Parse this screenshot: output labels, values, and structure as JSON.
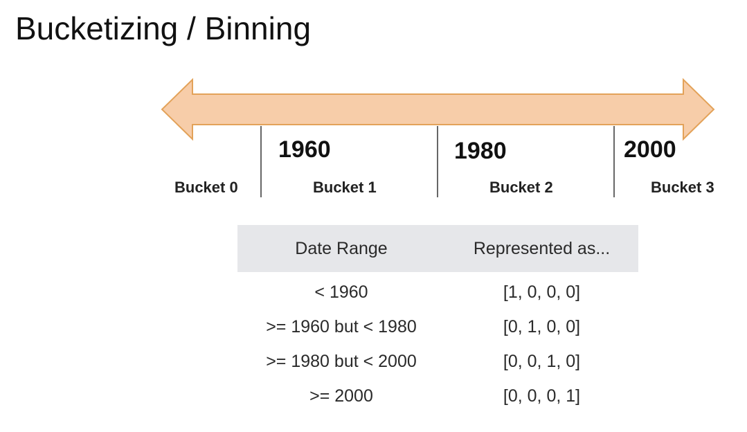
{
  "title": "Bucketizing / Binning",
  "timeline": {
    "arrow_fill": "#f7cda9",
    "arrow_stroke": "#e3a259",
    "years": [
      "1960",
      "1980",
      "2000"
    ],
    "buckets": [
      "Bucket 0",
      "Bucket 1",
      "Bucket 2",
      "Bucket 3"
    ]
  },
  "table": {
    "header_bg": "#e6e7ea",
    "headers": [
      "Date Range",
      "Represented as..."
    ],
    "rows": [
      {
        "range": "< 1960",
        "encoding": "[1, 0, 0, 0]"
      },
      {
        "range": ">= 1960 but < 1980",
        "encoding": "[0, 1, 0, 0]"
      },
      {
        "range": ">= 1980 but < 2000",
        "encoding": "[0, 0, 1, 0]"
      },
      {
        "range": ">= 2000",
        "encoding": "[0, 0, 0, 1]"
      }
    ]
  }
}
